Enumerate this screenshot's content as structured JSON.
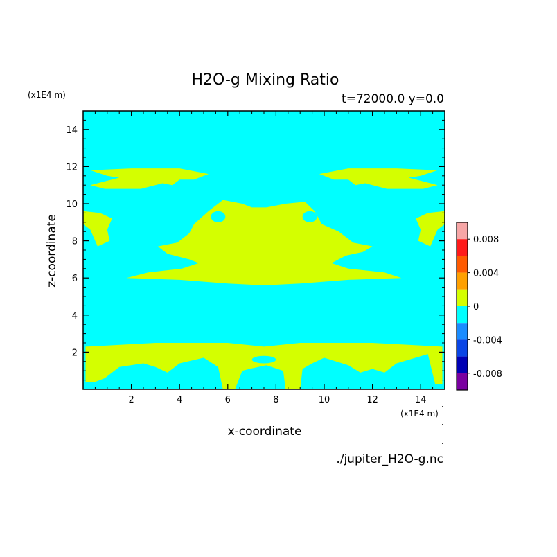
{
  "chart_data": {
    "type": "heatmap",
    "title": "H2O-g Mixing Ratio",
    "subtitle": "t=72000.0 y=0.0",
    "xlabel": "x-coordinate",
    "ylabel": "z-coordinate",
    "x_unit": "(x1E4 m)",
    "y_unit": "(x1E4 m)",
    "xlim": [
      0,
      15
    ],
    "ylim": [
      0,
      15
    ],
    "x_ticks": [
      2,
      4,
      6,
      8,
      10,
      12,
      14
    ],
    "y_ticks": [
      2,
      4,
      6,
      8,
      10,
      12,
      14
    ],
    "source": "./jupiter_H2O-g.nc",
    "background_level": "-0.002 to 0",
    "colorbar": {
      "levels": [
        {
          "range": [
            0.008,
            0.01
          ],
          "color": "#f7a6a6"
        },
        {
          "range": [
            0.006,
            0.008
          ],
          "color": "#ff1a1a"
        },
        {
          "range": [
            0.004,
            0.006
          ],
          "color": "#ff5a00"
        },
        {
          "range": [
            0.002,
            0.004
          ],
          "color": "#ffa000"
        },
        {
          "range": [
            0,
            0.002
          ],
          "color": "#d4ff00"
        },
        {
          "range": [
            -0.002,
            0
          ],
          "color": "#00ffff"
        },
        {
          "range": [
            -0.004,
            -0.002
          ],
          "color": "#1a8cff"
        },
        {
          "range": [
            -0.006,
            -0.004
          ],
          "color": "#0a46e6"
        },
        {
          "range": [
            -0.008,
            -0.006
          ],
          "color": "#0000b4"
        },
        {
          "range": [
            -0.01,
            -0.008
          ],
          "color": "#7a00a0"
        }
      ],
      "tick_labels": [
        "0.008",
        "0.004",
        "0",
        "-0.004",
        "-0.008"
      ],
      "tick_values": [
        0.008,
        0.004,
        0,
        -0.004,
        -0.008
      ]
    },
    "regions": [
      {
        "name": "bottom-band",
        "level": "0 to 0.002",
        "points": [
          [
            0.1,
            2.3
          ],
          [
            3,
            2.5
          ],
          [
            6,
            2.5
          ],
          [
            7.5,
            2.3
          ],
          [
            9,
            2.5
          ],
          [
            12,
            2.5
          ],
          [
            14.9,
            2.3
          ],
          [
            14.9,
            0.3
          ],
          [
            14.6,
            0.3
          ],
          [
            14.3,
            1.9
          ],
          [
            13,
            1.4
          ],
          [
            12.5,
            0.9
          ],
          [
            12,
            1.1
          ],
          [
            11.5,
            0.9
          ],
          [
            11,
            1.3
          ],
          [
            10,
            1.7
          ],
          [
            9.5,
            1.4
          ],
          [
            9.1,
            1.1
          ],
          [
            9.0,
            0
          ],
          [
            8.4,
            0
          ],
          [
            8.3,
            1.0
          ],
          [
            7.6,
            1.3
          ],
          [
            6.9,
            1.1
          ],
          [
            6.6,
            1.0
          ],
          [
            6.3,
            0
          ],
          [
            5.8,
            0
          ],
          [
            5.6,
            1.2
          ],
          [
            5,
            1.7
          ],
          [
            4,
            1.4
          ],
          [
            3.5,
            0.9
          ],
          [
            3,
            1.2
          ],
          [
            2.5,
            1.4
          ],
          [
            1.5,
            1.2
          ],
          [
            0.9,
            0.6
          ],
          [
            0.5,
            0.4
          ],
          [
            0.1,
            0.4
          ]
        ]
      },
      {
        "name": "middle-blob",
        "level": "0 to 0.002",
        "points": [
          [
            1.8,
            6.0
          ],
          [
            4,
            5.9
          ],
          [
            6,
            5.7
          ],
          [
            7.5,
            5.6
          ],
          [
            9,
            5.7
          ],
          [
            11,
            5.9
          ],
          [
            13.2,
            6.0
          ],
          [
            12.5,
            6.3
          ],
          [
            11,
            6.5
          ],
          [
            10.3,
            6.8
          ],
          [
            10.9,
            7.2
          ],
          [
            11.6,
            7.4
          ],
          [
            12,
            7.7
          ],
          [
            11.2,
            7.9
          ],
          [
            10.6,
            8.5
          ],
          [
            9.9,
            8.9
          ],
          [
            9.6,
            9.6
          ],
          [
            9.2,
            10.1
          ],
          [
            8.4,
            10.0
          ],
          [
            7.6,
            9.8
          ],
          [
            7,
            9.8
          ],
          [
            6.6,
            10.0
          ],
          [
            5.8,
            10.2
          ],
          [
            5.2,
            9.6
          ],
          [
            4.6,
            8.9
          ],
          [
            4.4,
            8.4
          ],
          [
            3.9,
            7.9
          ],
          [
            3.1,
            7.7
          ],
          [
            3.5,
            7.3
          ],
          [
            4.4,
            7.0
          ],
          [
            4.8,
            6.8
          ],
          [
            4.1,
            6.5
          ],
          [
            2.7,
            6.3
          ]
        ]
      },
      {
        "name": "upper-left-band",
        "level": "0 to 0.002",
        "points": [
          [
            0.3,
            11.8
          ],
          [
            2,
            11.9
          ],
          [
            4,
            11.9
          ],
          [
            5.2,
            11.6
          ],
          [
            4.6,
            11.3
          ],
          [
            4.0,
            11.3
          ],
          [
            3.7,
            11.0
          ],
          [
            3.3,
            11.1
          ],
          [
            2.4,
            10.8
          ],
          [
            0.9,
            10.8
          ],
          [
            0.3,
            11.0
          ],
          [
            0.9,
            11.2
          ],
          [
            1.5,
            11.4
          ],
          [
            1.0,
            11.5
          ]
        ]
      },
      {
        "name": "upper-right-band",
        "level": "0 to 0.002",
        "points": [
          [
            14.7,
            11.8
          ],
          [
            13,
            11.9
          ],
          [
            11,
            11.9
          ],
          [
            9.8,
            11.6
          ],
          [
            10.4,
            11.3
          ],
          [
            11.0,
            11.3
          ],
          [
            11.3,
            11.0
          ],
          [
            11.7,
            11.1
          ],
          [
            12.6,
            10.8
          ],
          [
            14.1,
            10.8
          ],
          [
            14.7,
            11.0
          ],
          [
            14.1,
            11.2
          ],
          [
            13.5,
            11.4
          ],
          [
            14.0,
            11.5
          ]
        ]
      },
      {
        "name": "left-edge-blob",
        "level": "0 to 0.002",
        "points": [
          [
            0,
            9.6
          ],
          [
            0.7,
            9.5
          ],
          [
            1.2,
            9.2
          ],
          [
            1.0,
            8.6
          ],
          [
            1.1,
            8.0
          ],
          [
            0.6,
            7.7
          ],
          [
            0.3,
            8.6
          ],
          [
            0,
            8.9
          ]
        ]
      },
      {
        "name": "right-edge-blob",
        "level": "0 to 0.002",
        "points": [
          [
            15,
            9.6
          ],
          [
            14.3,
            9.5
          ],
          [
            13.8,
            9.2
          ],
          [
            14.0,
            8.6
          ],
          [
            13.9,
            8.0
          ],
          [
            14.4,
            7.7
          ],
          [
            14.7,
            8.6
          ],
          [
            15,
            8.9
          ]
        ]
      }
    ],
    "holes": [
      {
        "name": "hole-left",
        "level": "-0.002 to 0",
        "center": [
          5.6,
          9.3
        ],
        "radius": [
          0.3,
          0.3
        ]
      },
      {
        "name": "hole-right",
        "level": "-0.002 to 0",
        "center": [
          9.4,
          9.3
        ],
        "radius": [
          0.3,
          0.3
        ]
      },
      {
        "name": "hole-mid-low",
        "level": "-0.002 to 0",
        "center": [
          7.5,
          1.6
        ],
        "radius": [
          0.5,
          0.2
        ]
      }
    ]
  }
}
